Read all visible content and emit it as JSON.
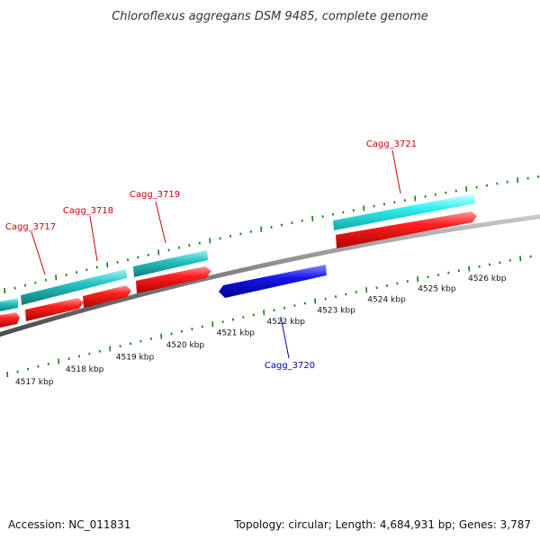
{
  "title": "Chloroflexus aggregans DSM 9485, complete genome",
  "footer": {
    "accession": "Accession: NC_011831",
    "summary": "Topology: circular; Length: 4,684,931 bp; Genes: 3,787"
  },
  "colors": {
    "backbone": "#808080",
    "tick": "#1a7a1a",
    "forward_cds": "#ee1111",
    "forward_gene": "#20b8b8",
    "forward_gene_highlight": "#22e0e0",
    "reverse_cds": "#1010dd",
    "label_forward": "#cc0000",
    "label_reverse": "#0000aa"
  },
  "scale": {
    "kbp_labels": [
      "4517 kbp",
      "4518 kbp",
      "4519 kbp",
      "4520 kbp",
      "4521 kbp",
      "4522 kbp",
      "4523 kbp",
      "4524 kbp",
      "4525 kbp",
      "4526 kbp"
    ]
  },
  "genes": [
    {
      "name": "Cagg_3717",
      "strand": "forward"
    },
    {
      "name": "Cagg_3718",
      "strand": "forward"
    },
    {
      "name": "Cagg_3719",
      "strand": "forward"
    },
    {
      "name": "Cagg_3720",
      "strand": "reverse"
    },
    {
      "name": "Cagg_3721",
      "strand": "forward"
    }
  ]
}
